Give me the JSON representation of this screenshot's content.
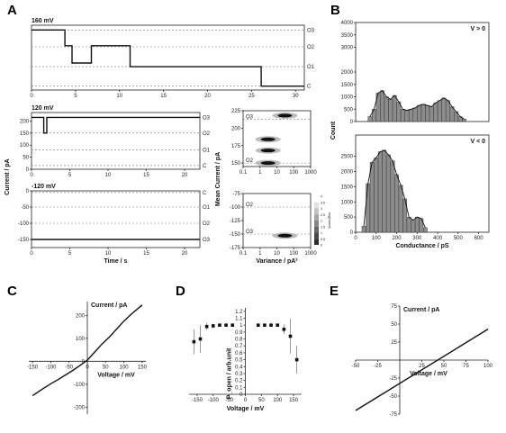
{
  "figure": {
    "panels": {
      "A": "A",
      "B": "B",
      "C": "C",
      "D": "D",
      "E": "E"
    }
  },
  "chart_data": [
    {
      "id": "A1",
      "type": "line",
      "title": "160 mV",
      "x": [
        0,
        3.8,
        3.8,
        4.6,
        4.6,
        6.8,
        6.8,
        7.7,
        7.7,
        11.2,
        11.2,
        26.1,
        26.1,
        31
      ],
      "y": [
        278,
        278,
        205,
        205,
        125,
        125,
        205,
        205,
        205,
        205,
        108,
        108,
        18,
        18
      ],
      "xlim": [
        0,
        31
      ],
      "ylim": [
        0,
        300
      ],
      "xticks": [
        0,
        5,
        10,
        15,
        20,
        25,
        30
      ],
      "right_labels": [
        {
          "label": "O3",
          "y": 278
        },
        {
          "label": "O2",
          "y": 200
        },
        {
          "label": "O1",
          "y": 108
        },
        {
          "label": "C",
          "y": 18
        }
      ]
    },
    {
      "id": "A2",
      "type": "line",
      "title": "120 mV",
      "ylabel": "Current / pA",
      "x": [
        0,
        1.6,
        1.6,
        2.0,
        2.0,
        22
      ],
      "y": [
        215,
        215,
        150,
        150,
        215,
        215
      ],
      "xlim": [
        0,
        22
      ],
      "ylim": [
        0,
        235
      ],
      "xticks": [
        0,
        5,
        10,
        15,
        20
      ],
      "yticks": [
        0,
        50,
        100,
        150,
        200
      ],
      "right_labels": [
        {
          "label": "O3",
          "y": 215
        },
        {
          "label": "O2",
          "y": 150
        },
        {
          "label": "O1",
          "y": 80
        },
        {
          "label": "C",
          "y": 15
        }
      ]
    },
    {
      "id": "A3",
      "type": "line",
      "title": "-120 mV",
      "xlabel": "Time / s",
      "x": [
        0,
        22
      ],
      "y": [
        -150,
        -150
      ],
      "xlim": [
        0,
        22
      ],
      "ylim": [
        -175,
        0
      ],
      "xticks": [
        0,
        5,
        10,
        15,
        20
      ],
      "yticks": [
        -150,
        -100,
        -50,
        0
      ],
      "right_labels": [
        {
          "label": "C",
          "y": -5
        },
        {
          "label": "O1",
          "y": -50
        },
        {
          "label": "O2",
          "y": -100
        },
        {
          "label": "O3",
          "y": -150
        }
      ]
    },
    {
      "id": "A4",
      "type": "scatter",
      "ylabel": "Mean Current / pA",
      "xscale": "log",
      "xlim": [
        0.1,
        1000
      ],
      "ylim": [
        145,
        225
      ],
      "xticks": [
        0.1,
        1,
        10,
        100,
        1000
      ],
      "yticks": [
        150,
        175,
        200,
        225
      ],
      "x": [
        30,
        3,
        3,
        3
      ],
      "y": [
        218,
        184,
        168,
        150
      ],
      "labels": [
        {
          "label": "O3",
          "y": 213
        },
        {
          "label": "O2",
          "y": 150
        }
      ]
    },
    {
      "id": "A5",
      "type": "scatter",
      "xlabel": "Variance / pA²",
      "xscale": "log",
      "xlim": [
        0.1,
        1000
      ],
      "ylim": [
        -175,
        -75
      ],
      "xticks": [
        0.1,
        1,
        10,
        100,
        1000
      ],
      "yticks": [
        -175,
        -150,
        -125,
        -100,
        -75
      ],
      "x": [
        30
      ],
      "y": [
        -153
      ],
      "labels": [
        {
          "label": "O2",
          "y": -100
        },
        {
          "label": "O3",
          "y": -150
        }
      ],
      "colorbar": {
        "label": "log(count)",
        "ticks": [
          0,
          0.5,
          1.0,
          1.5,
          2.0,
          2.5,
          3.0,
          3.5,
          4.0
        ]
      }
    },
    {
      "id": "B1",
      "type": "bar",
      "title": "V > 0",
      "ylabel": "Count",
      "xlim": [
        0,
        650
      ],
      "ylim": [
        0,
        4000
      ],
      "yticks": [
        0,
        500,
        1000,
        1500,
        2000,
        3000,
        3500,
        4000
      ],
      "x": [
        70,
        90,
        110,
        130,
        150,
        170,
        190,
        210,
        230,
        250,
        270,
        290,
        310,
        330,
        350,
        370,
        390,
        410,
        430,
        450,
        470,
        490,
        510,
        530
      ],
      "values": [
        200,
        500,
        1150,
        1250,
        1000,
        900,
        1050,
        800,
        500,
        450,
        500,
        550,
        650,
        700,
        650,
        600,
        750,
        850,
        950,
        850,
        600,
        400,
        200,
        100
      ]
    },
    {
      "id": "B2",
      "type": "bar",
      "title": "V < 0",
      "xlabel": "Conductance / pS",
      "xlim": [
        0,
        650
      ],
      "ylim": [
        0,
        3200
      ],
      "yticks": [
        0,
        500,
        1000,
        1500,
        2000,
        2500
      ],
      "xticks": [
        0,
        100,
        200,
        300,
        400,
        500,
        600
      ],
      "x": [
        40,
        60,
        80,
        100,
        120,
        140,
        160,
        180,
        200,
        220,
        240,
        260,
        280,
        300,
        320,
        340
      ],
      "values": [
        200,
        1600,
        2300,
        2450,
        2650,
        2700,
        2550,
        2350,
        1900,
        1550,
        1100,
        500,
        400,
        500,
        450,
        150
      ]
    },
    {
      "id": "C",
      "type": "line",
      "xlabel": "Voltage / mV",
      "ylabel": "Current / pA",
      "x": [
        -150,
        -120,
        -100,
        -80,
        -60,
        -40,
        -20,
        0,
        20,
        40,
        60,
        80,
        100,
        120,
        150
      ],
      "y": [
        -150,
        -118,
        -98,
        -80,
        -60,
        -40,
        -18,
        5,
        40,
        75,
        105,
        140,
        175,
        205,
        245
      ],
      "xlim": [
        -160,
        160
      ],
      "ylim": [
        -230,
        260
      ],
      "xticks": [
        -150,
        -100,
        -50,
        0,
        50,
        100,
        150
      ],
      "yticks": [
        -200,
        -100,
        0,
        100,
        200
      ]
    },
    {
      "id": "D",
      "type": "scatter",
      "xlabel": "Voltage / mV",
      "ylabel": "P_open / arb.unit",
      "x": [
        -160,
        -140,
        -120,
        -100,
        -80,
        -60,
        -40,
        40,
        60,
        80,
        100,
        120,
        140,
        160
      ],
      "y": [
        0.76,
        0.8,
        0.98,
        0.99,
        1.0,
        1.0,
        1.0,
        1.0,
        1.0,
        1.0,
        1.0,
        0.94,
        0.84,
        0.5
      ],
      "yerr": [
        0.18,
        0.2,
        0.05,
        0.03,
        0.02,
        0.02,
        0.02,
        0.02,
        0.02,
        0.02,
        0.02,
        0.07,
        0.25,
        0.2
      ],
      "xlim": [
        -175,
        175
      ],
      "ylim": [
        0,
        1.25
      ],
      "xticks": [
        -150,
        -100,
        -50,
        0,
        50,
        100,
        150
      ],
      "yticks": [
        0.0,
        0.1,
        0.2,
        0.3,
        0.4,
        0.5,
        0.6,
        0.7,
        0.8,
        0.9,
        1.0,
        1.1,
        1.2
      ]
    },
    {
      "id": "E",
      "type": "line",
      "xlabel": "Voltage / mV",
      "ylabel": "Current / pA",
      "x": [
        -50,
        100
      ],
      "y": [
        -70,
        43
      ],
      "xlim": [
        -50,
        100
      ],
      "ylim": [
        -75,
        75
      ],
      "xticks": [
        -50,
        -25,
        25,
        50,
        75,
        100
      ],
      "yticks": [
        -75,
        -50,
        -25,
        25,
        50,
        75
      ]
    }
  ]
}
